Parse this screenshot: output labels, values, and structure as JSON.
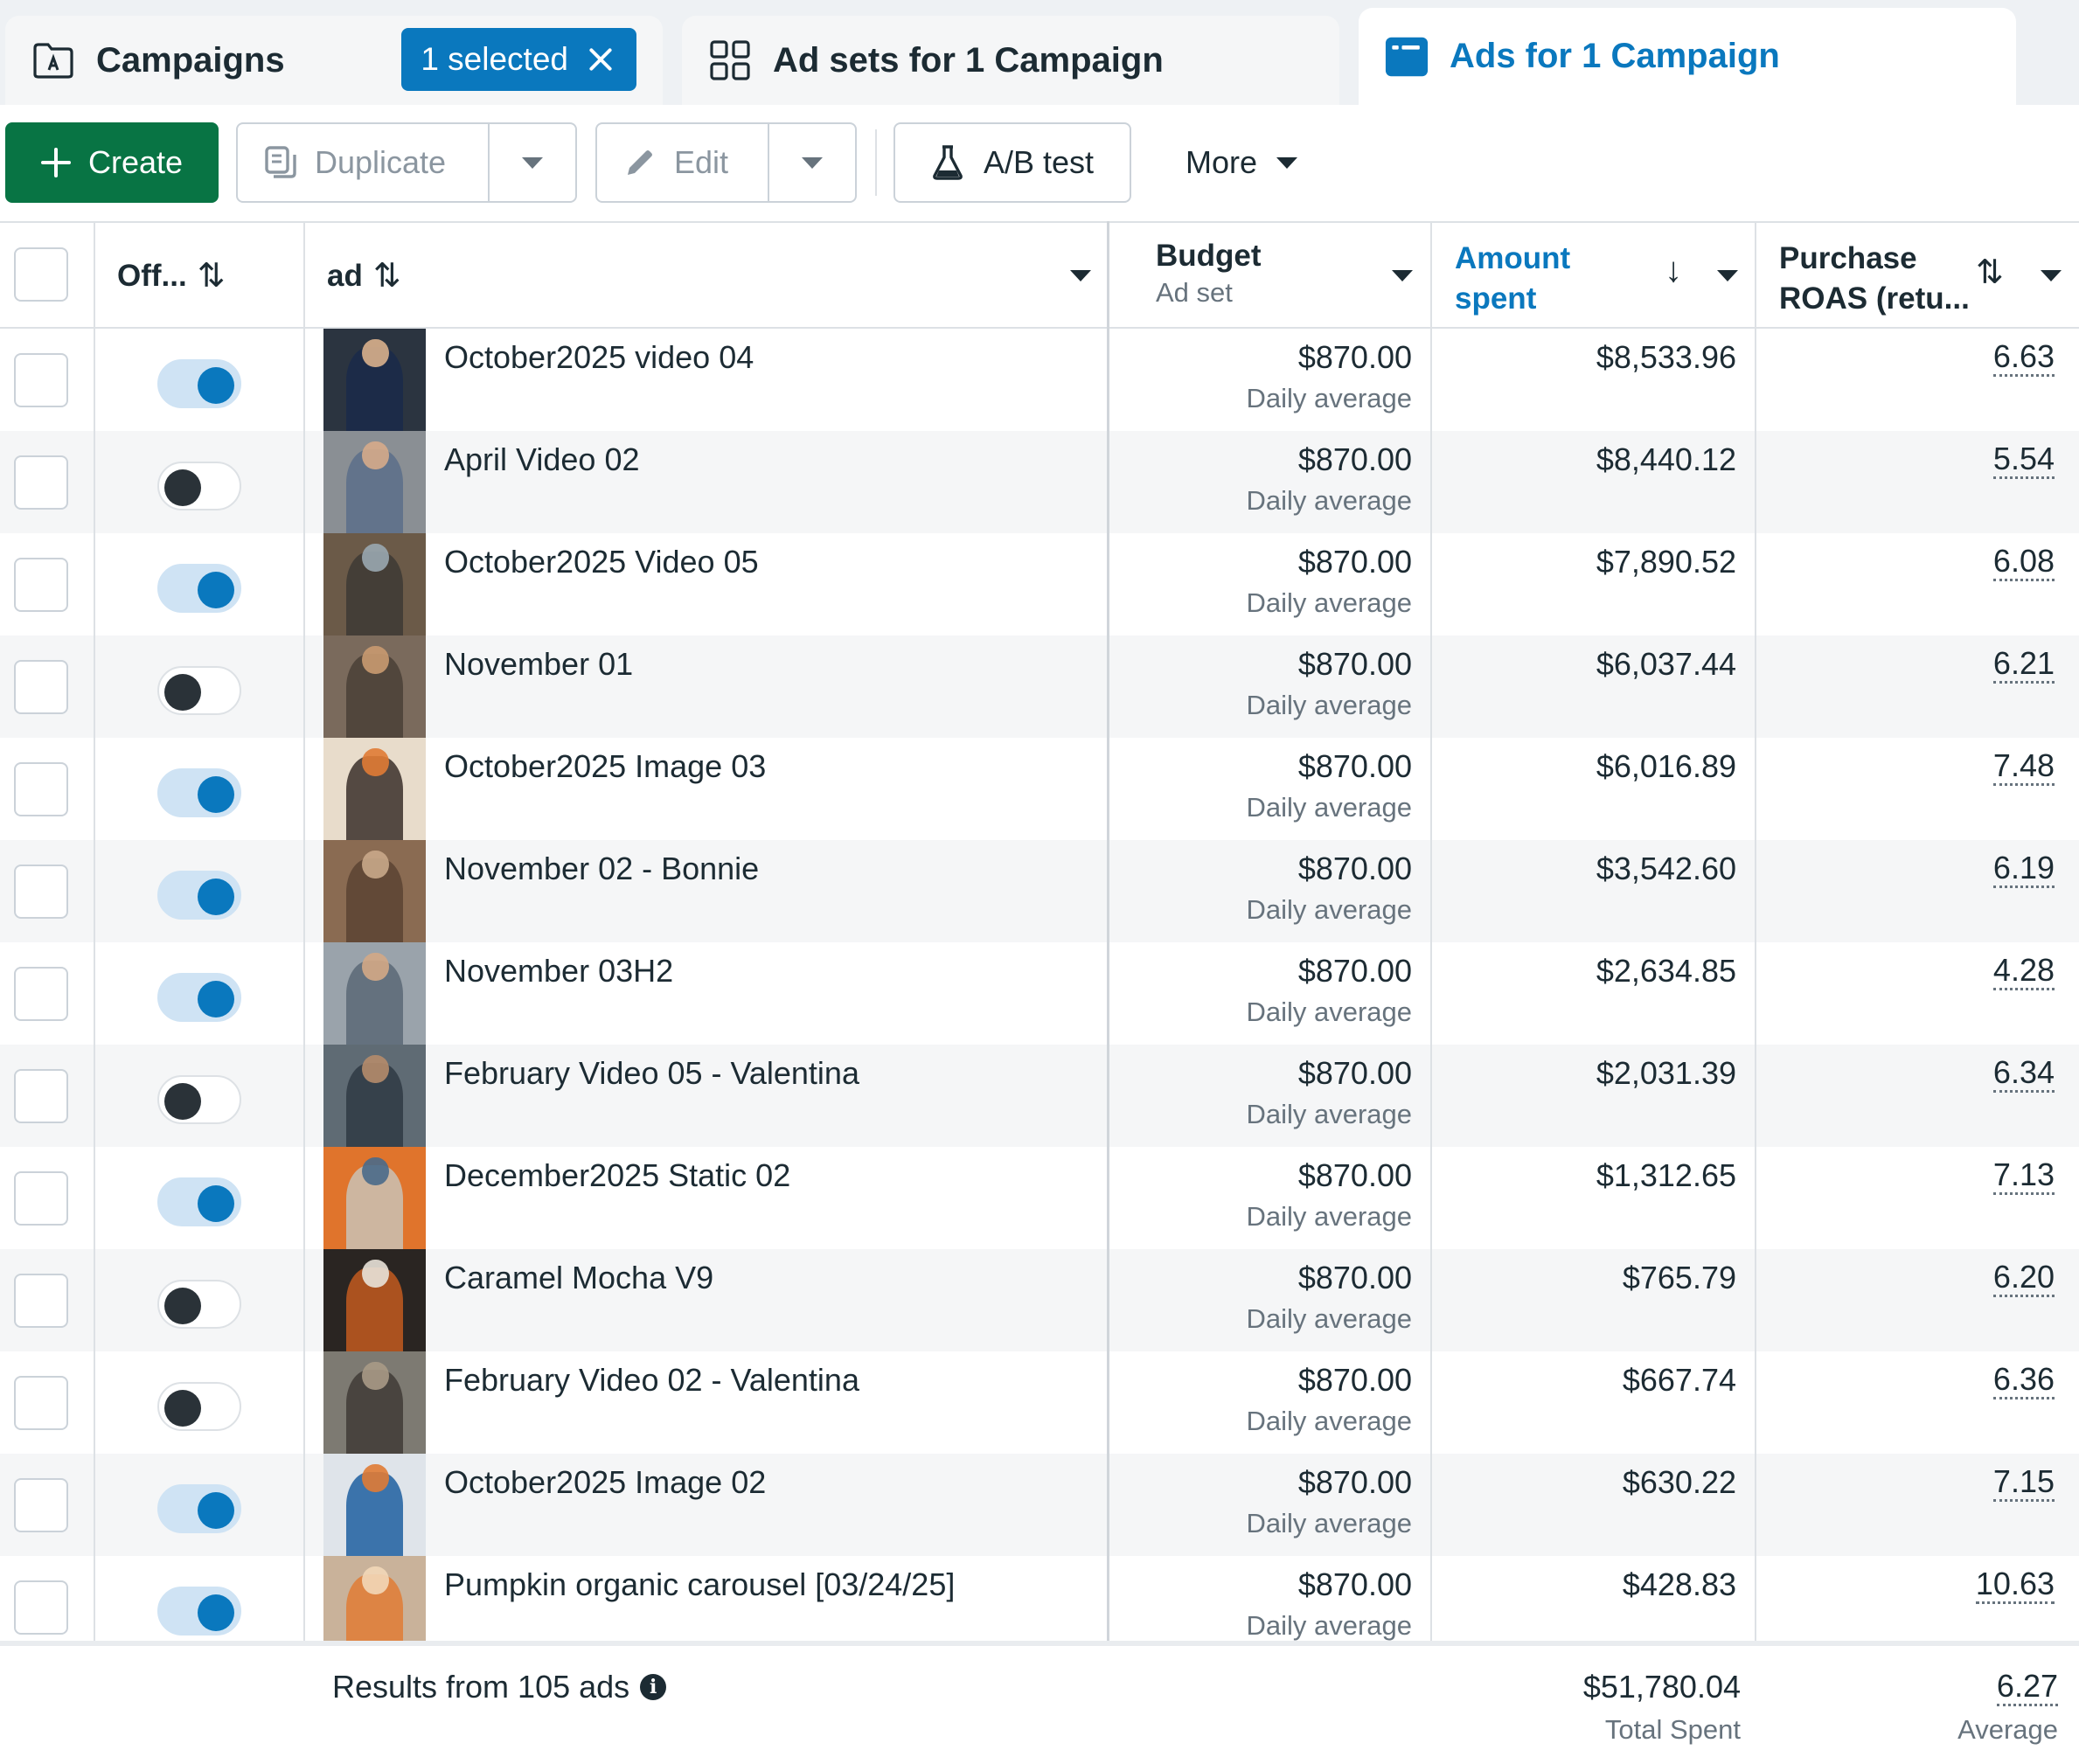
{
  "tabs": {
    "campaigns": {
      "label": "Campaigns",
      "selected_chip": "1 selected"
    },
    "adsets": {
      "label": "Ad sets for 1 Campaign"
    },
    "ads": {
      "label": "Ads for 1 Campaign"
    }
  },
  "toolbar": {
    "create": "Create",
    "duplicate": "Duplicate",
    "edit": "Edit",
    "ab_test": "A/B test",
    "more": "More"
  },
  "columns": {
    "off": "Off...",
    "ad": "ad",
    "budget": "Budget",
    "budget_sub": "Ad set",
    "amount_spent_line1": "Amount",
    "amount_spent_line2": "spent",
    "roas_line1": "Purchase",
    "roas_line2": "ROAS (retu..."
  },
  "colors": {
    "accent": "#0a78be",
    "create_button": "#087444",
    "toggle_on_track": "#cfe3f4",
    "toggle_off_knob": "#2a3238"
  },
  "rows": [
    {
      "name": "October2025 video 04",
      "on": true,
      "budget": "$870.00",
      "budget_sub": "Daily average",
      "spent": "$8,533.96",
      "roas": "6.63",
      "thumb": [
        "#2b3440",
        "#1a2a4a",
        "#d9b08c"
      ]
    },
    {
      "name": "April Video 02",
      "on": false,
      "budget": "$870.00",
      "budget_sub": "Daily average",
      "spent": "$8,440.12",
      "roas": "5.54",
      "thumb": [
        "#8a8f94",
        "#5a6f8a",
        "#d6ab8a"
      ]
    },
    {
      "name": "October2025 Video 05",
      "on": true,
      "budget": "$870.00",
      "budget_sub": "Daily average",
      "spent": "$7,890.52",
      "roas": "6.08",
      "thumb": [
        "#6b5a48",
        "#3d3a35",
        "#9aa7b0"
      ]
    },
    {
      "name": "November 01",
      "on": false,
      "budget": "$870.00",
      "budget_sub": "Daily average",
      "spent": "$6,037.44",
      "roas": "6.21",
      "thumb": [
        "#7a6a5c",
        "#4a4036",
        "#c99a70"
      ]
    },
    {
      "name": "October2025 Image 03",
      "on": true,
      "budget": "$870.00",
      "budget_sub": "Daily average",
      "spent": "$6,016.89",
      "roas": "7.48",
      "thumb": [
        "#e8dccb",
        "#3a2f2a",
        "#e07b35"
      ]
    },
    {
      "name": "November 02 - Bonnie",
      "on": true,
      "budget": "$870.00",
      "budget_sub": "Daily average",
      "spent": "$3,542.60",
      "roas": "6.19",
      "thumb": [
        "#8a6b52",
        "#5a4332",
        "#c9a98a"
      ]
    },
    {
      "name": "November 03H2",
      "on": true,
      "budget": "$870.00",
      "budget_sub": "Daily average",
      "spent": "$2,634.85",
      "roas": "4.28",
      "thumb": [
        "#9aa3ab",
        "#5b6875",
        "#d3a886"
      ]
    },
    {
      "name": "February Video 05 - Valentina",
      "on": false,
      "budget": "$870.00",
      "budget_sub": "Daily average",
      "spent": "$2,031.39",
      "roas": "6.34",
      "thumb": [
        "#5f6b74",
        "#2f3a44",
        "#b58c6c"
      ]
    },
    {
      "name": "December2025 Static 02",
      "on": true,
      "budget": "$870.00",
      "budget_sub": "Daily average",
      "spent": "$1,312.65",
      "roas": "7.13",
      "thumb": [
        "#e0742c",
        "#c9c2b5",
        "#4a6a8a"
      ]
    },
    {
      "name": "Caramel Mocha V9",
      "on": false,
      "budget": "$870.00",
      "budget_sub": "Daily average",
      "spent": "$765.79",
      "roas": "6.20",
      "thumb": [
        "#2a2522",
        "#c25a1f",
        "#e8e2d8"
      ]
    },
    {
      "name": "February Video 02 - Valentina",
      "on": false,
      "budget": "$870.00",
      "budget_sub": "Daily average",
      "spent": "$667.74",
      "roas": "6.36",
      "thumb": [
        "#7d7a72",
        "#3f3b36",
        "#a89a86"
      ]
    },
    {
      "name": "October2025 Image 02",
      "on": true,
      "budget": "$870.00",
      "budget_sub": "Daily average",
      "spent": "$630.22",
      "roas": "7.15",
      "thumb": [
        "#dfe4ea",
        "#1f5fa0",
        "#e07b35"
      ]
    },
    {
      "name": "Pumpkin organic carousel [03/24/25]",
      "on": true,
      "budget": "$870.00",
      "budget_sub": "Daily average",
      "spent": "$428.83",
      "roas": "10.63",
      "thumb": [
        "#c9b29a",
        "#e07b35",
        "#f2d7b8"
      ]
    }
  ],
  "footer": {
    "results": "Results from 105 ads",
    "total": "$51,780.04",
    "total_sub": "Total Spent",
    "avg": "6.27",
    "avg_sub": "Average"
  }
}
